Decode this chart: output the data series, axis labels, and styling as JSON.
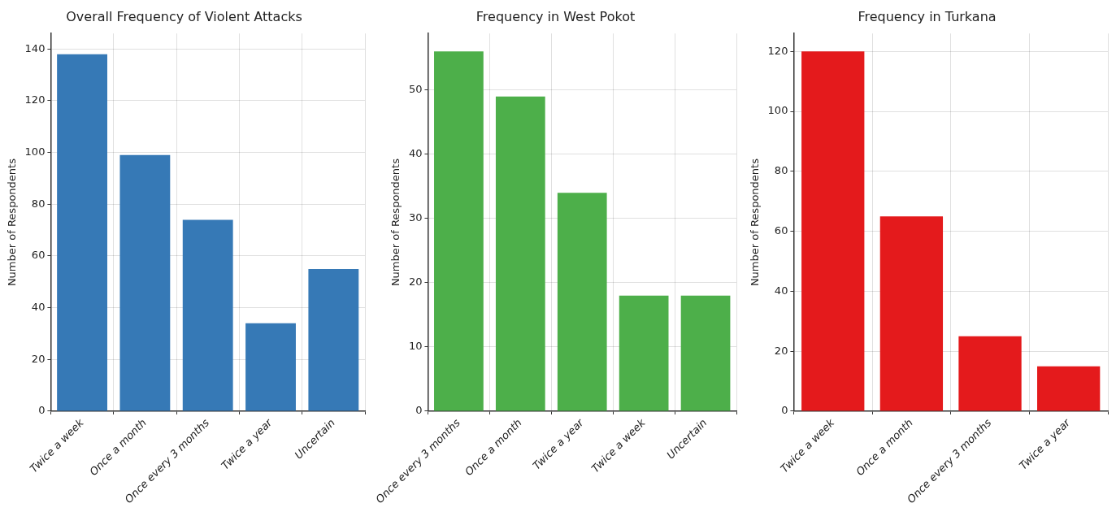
{
  "chart_data": [
    {
      "type": "bar",
      "title": "Overall Frequency of Violent Attacks",
      "ylabel": "Number of Respondents",
      "categories": [
        "Twice a week",
        "Once a month",
        "Once every 3 months",
        "Twice a year",
        "Uncertain"
      ],
      "values": [
        138,
        99,
        74,
        34,
        55
      ],
      "color": "#3679b6",
      "ylim": [
        0,
        146
      ],
      "yticks": [
        0,
        20,
        40,
        60,
        80,
        100,
        120,
        140
      ],
      "grid": true
    },
    {
      "type": "bar",
      "title": "Frequency in West Pokot",
      "ylabel": "Number of Respondents",
      "categories": [
        "Once every 3 months",
        "Once a month",
        "Twice a year",
        "Twice a week",
        "Uncertain"
      ],
      "values": [
        56,
        49,
        34,
        18,
        18
      ],
      "color": "#4daf4a",
      "ylim": [
        0,
        58.8
      ],
      "yticks": [
        0,
        10,
        20,
        30,
        40,
        50
      ],
      "grid": true
    },
    {
      "type": "bar",
      "title": "Frequency in Turkana",
      "ylabel": "Number of Respondents",
      "categories": [
        "Twice a week",
        "Once a month",
        "Once every 3 months",
        "Twice a year"
      ],
      "values": [
        120,
        65,
        25,
        15
      ],
      "color": "#e41a1c",
      "ylim": [
        0,
        126
      ],
      "yticks": [
        0,
        20,
        40,
        60,
        80,
        100,
        120
      ],
      "grid": true
    }
  ]
}
